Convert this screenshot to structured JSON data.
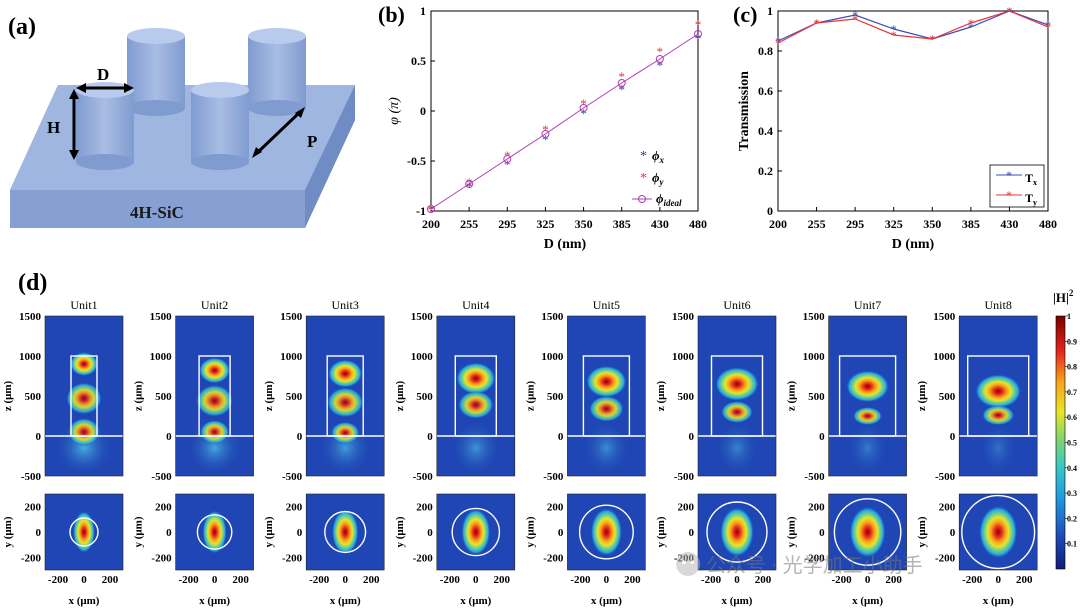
{
  "chart_data": [
    {
      "panel": "(a)",
      "type": "other",
      "title": "(a)",
      "labels": {
        "D": "D",
        "H": "H",
        "P": "P",
        "substrate": "4H-SiC"
      }
    },
    {
      "panel": "(b)",
      "type": "scatter",
      "title": "(b)",
      "categories": [
        "200",
        "255",
        "295",
        "325",
        "350",
        "385",
        "430",
        "480"
      ],
      "series": [
        {
          "name": "φx",
          "sub": "x",
          "marker": "asterisk",
          "color": "#2b3f9e",
          "values": [
            -0.98,
            -0.75,
            -0.53,
            -0.28,
            -0.02,
            0.22,
            0.46,
            0.73
          ]
        },
        {
          "name": "φy",
          "sub": "y",
          "marker": "asterisk",
          "color": "#e8363a",
          "values": [
            -0.98,
            -0.71,
            -0.44,
            -0.18,
            0.08,
            0.35,
            0.6,
            0.87
          ]
        },
        {
          "name": "φideal",
          "sub": "ideal",
          "marker": "circle-line",
          "color": "#b03cb8",
          "values": [
            -0.98,
            -0.73,
            -0.48,
            -0.23,
            0.03,
            0.28,
            0.52,
            0.77
          ]
        }
      ],
      "xlabel": "D (nm)",
      "ylabel": "φ (π)",
      "ylim": [
        -1,
        1
      ],
      "yticks": [
        "-1",
        "-0.5",
        "0",
        "0.5",
        "1"
      ],
      "legend": "bottom-right"
    },
    {
      "panel": "(c)",
      "type": "line",
      "title": "(c)",
      "categories": [
        "200",
        "255",
        "295",
        "325",
        "350",
        "385",
        "430",
        "480"
      ],
      "series": [
        {
          "name": "Tx",
          "sub": "x",
          "color": "#3a4fb8",
          "values": [
            0.85,
            0.94,
            0.98,
            0.91,
            0.86,
            0.92,
            1.0,
            0.93
          ]
        },
        {
          "name": "Ty",
          "sub": "y",
          "color": "#e8363a",
          "values": [
            0.84,
            0.94,
            0.96,
            0.88,
            0.86,
            0.94,
            1.0,
            0.92
          ]
        }
      ],
      "xlabel": "D (nm)",
      "ylabel": "Transmission",
      "ylim": [
        0,
        1
      ],
      "yticks": [
        "0",
        "0.2",
        "0.4",
        "0.6",
        "0.8",
        "1"
      ],
      "legend": "bottom-right"
    },
    {
      "panel": "(d)",
      "type": "heatmap",
      "title": "(d)",
      "units": [
        "Unit1",
        "Unit2",
        "Unit3",
        "Unit4",
        "Unit5",
        "Unit6",
        "Unit7",
        "Unit8"
      ],
      "top_row": {
        "ylabel": "z (μm)",
        "yticks": [
          "1500",
          "1000",
          "500",
          "0",
          "-500"
        ],
        "ylim": [
          -500,
          1500
        ]
      },
      "bottom_row": {
        "ylabel": "y (μm)",
        "yticks": [
          "200",
          "0",
          "-200"
        ],
        "xlabel": "x (μm)",
        "xticks": [
          "-200",
          "0",
          "200"
        ],
        "ylim": [
          -300,
          300
        ]
      },
      "colorbar": {
        "label": "|H|",
        "sup": "2",
        "ticks": [
          "1",
          "0.9",
          "0.8",
          "0.7",
          "0.6",
          "0.5",
          "0.4",
          "0.3",
          "0.2",
          "0.1"
        ],
        "range": [
          0,
          1
        ]
      }
    }
  ],
  "watermark": "公众号 · 光学加工小助手"
}
